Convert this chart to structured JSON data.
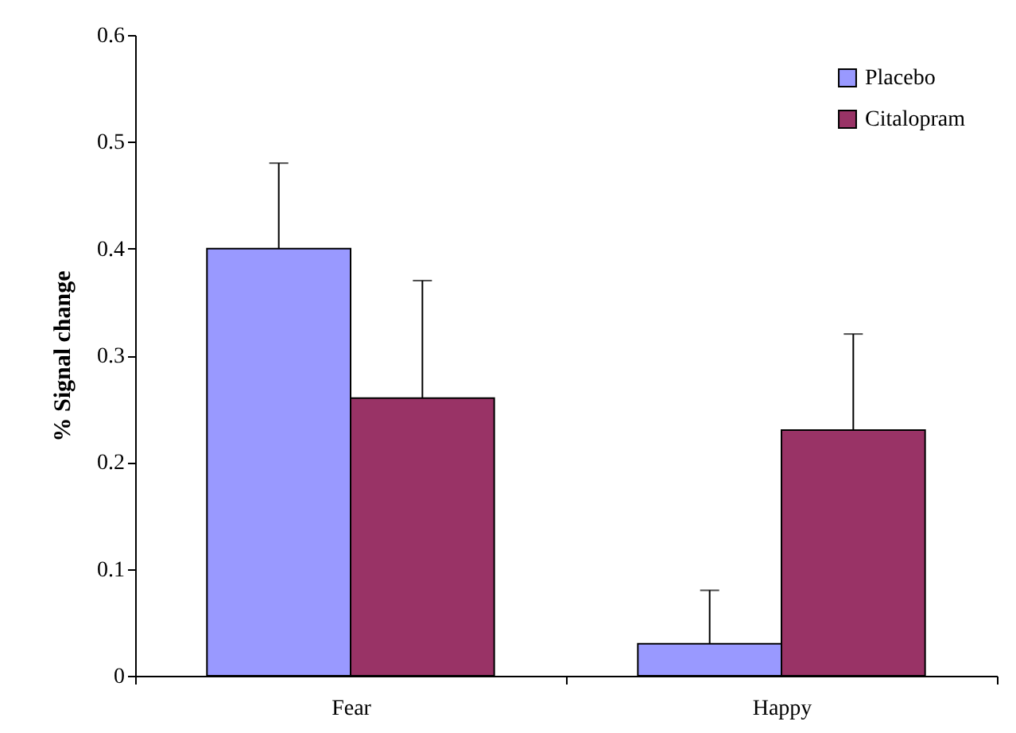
{
  "chart_data": {
    "type": "bar",
    "ylabel": "% Signal change",
    "categories": [
      "Fear",
      "Happy"
    ],
    "series": [
      {
        "name": "Placebo",
        "color": "#9999ff",
        "values": [
          0.4,
          0.03
        ],
        "errors": [
          [
            0.4,
            0.48
          ],
          [
            0.03,
            0.08
          ]
        ]
      },
      {
        "name": "Citalopram",
        "color": "#993366",
        "values": [
          0.26,
          0.23
        ],
        "errors": [
          [
            0.26,
            0.37
          ],
          [
            0.23,
            0.32
          ]
        ]
      }
    ],
    "ylim": [
      0,
      0.6
    ],
    "yticks": [
      0,
      0.1,
      0.2,
      0.3,
      0.4,
      0.5,
      0.6
    ],
    "legend": "top right"
  }
}
